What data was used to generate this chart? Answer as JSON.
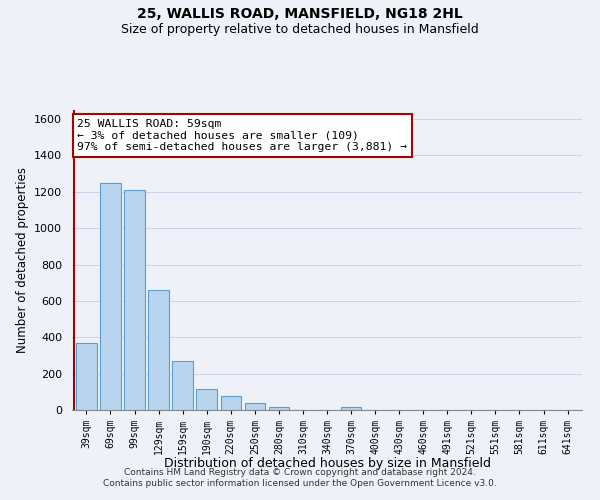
{
  "title": "25, WALLIS ROAD, MANSFIELD, NG18 2HL",
  "subtitle": "Size of property relative to detached houses in Mansfield",
  "xlabel": "Distribution of detached houses by size in Mansfield",
  "ylabel": "Number of detached properties",
  "footnote1": "Contains HM Land Registry data © Crown copyright and database right 2024.",
  "footnote2": "Contains public sector information licensed under the Open Government Licence v3.0.",
  "bar_labels": [
    "39sqm",
    "69sqm",
    "99sqm",
    "129sqm",
    "159sqm",
    "190sqm",
    "220sqm",
    "250sqm",
    "280sqm",
    "310sqm",
    "340sqm",
    "370sqm",
    "400sqm",
    "430sqm",
    "460sqm",
    "491sqm",
    "521sqm",
    "551sqm",
    "581sqm",
    "611sqm",
    "641sqm"
  ],
  "bar_values": [
    370,
    1250,
    1210,
    660,
    270,
    115,
    75,
    38,
    18,
    0,
    0,
    15,
    0,
    0,
    0,
    0,
    0,
    0,
    0,
    0,
    0
  ],
  "bar_color": "#b8d4ee",
  "bar_edge_color": "#5a9fd4",
  "highlight_color": "#aa0000",
  "ylim": [
    0,
    1650
  ],
  "yticks": [
    0,
    200,
    400,
    600,
    800,
    1000,
    1200,
    1400,
    1600
  ],
  "annotation_line1": "25 WALLIS ROAD: 59sqm",
  "annotation_line2": "← 3% of detached houses are smaller (109)",
  "annotation_line3": "97% of semi-detached houses are larger (3,881) →",
  "annotation_box_color": "#ffffff",
  "annotation_box_edgecolor": "#aa0000",
  "red_line_x": -0.5,
  "background_color": "#eef2f8",
  "grid_color": "#c8d4e8",
  "title_fontsize": 10,
  "subtitle_fontsize": 9
}
